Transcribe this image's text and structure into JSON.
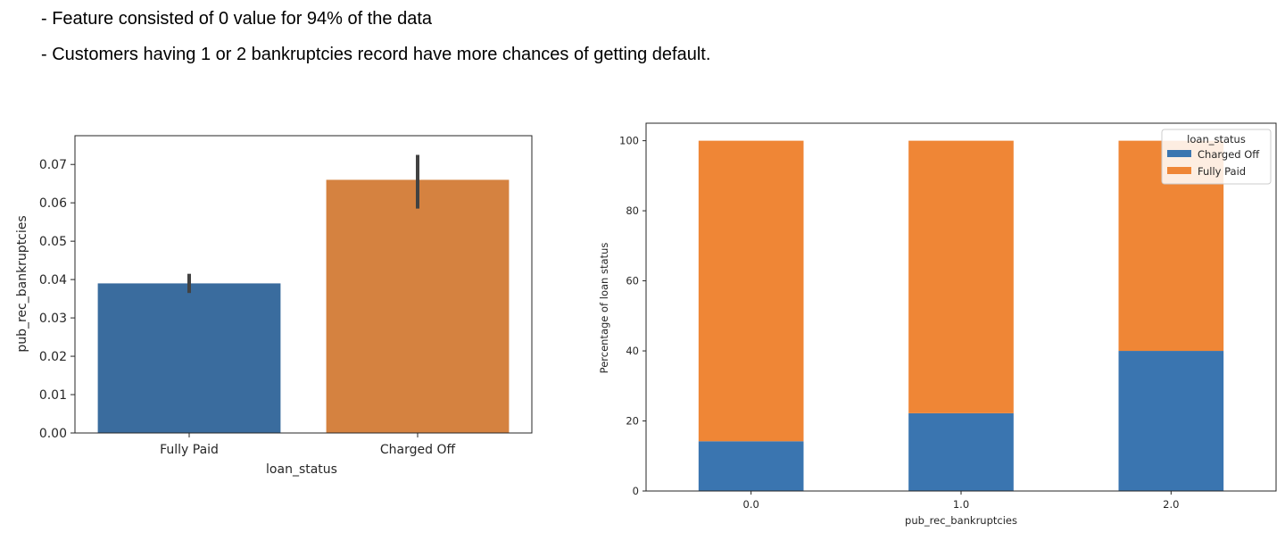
{
  "notes": [
    "- Feature consisted of 0 value for 94% of the data",
    "- Customers having 1 or 2 bankruptcies record have more chances of getting default."
  ],
  "chart_data": [
    {
      "type": "bar",
      "title": "",
      "xlabel": "loan_status",
      "ylabel": "pub_rec_bankruptcies",
      "categories": [
        "Fully Paid",
        "Charged Off"
      ],
      "values": [
        0.039,
        0.066
      ],
      "error_bars": [
        [
          0.0365,
          0.0415
        ],
        [
          0.0585,
          0.0725
        ]
      ],
      "colors": [
        "#3a6c9e",
        "#d58240"
      ],
      "ylim": [
        0,
        0.0775
      ],
      "yticks": [
        0.0,
        0.01,
        0.02,
        0.03,
        0.04,
        0.05,
        0.06,
        0.07
      ],
      "ytick_labels": [
        "0.00",
        "0.01",
        "0.02",
        "0.03",
        "0.04",
        "0.05",
        "0.06",
        "0.07"
      ],
      "grid": false
    },
    {
      "type": "bar",
      "stacked": true,
      "title": "",
      "xlabel": "pub_rec_bankruptcies",
      "ylabel": "Percentage of loan status",
      "categories": [
        "0.0",
        "1.0",
        "2.0"
      ],
      "series": [
        {
          "name": "Charged Off",
          "values": [
            14.2,
            22.2,
            40.0
          ],
          "color": "#3a75b0"
        },
        {
          "name": "Fully Paid",
          "values": [
            85.8,
            77.8,
            60.0
          ],
          "color": "#ef8636"
        }
      ],
      "ylim": [
        0,
        105
      ],
      "yticks": [
        0,
        20,
        40,
        60,
        80,
        100
      ],
      "ytick_labels": [
        "0",
        "20",
        "40",
        "60",
        "80",
        "100"
      ],
      "legend": {
        "title": "loan_status",
        "position": "top-right"
      },
      "grid": false
    }
  ]
}
